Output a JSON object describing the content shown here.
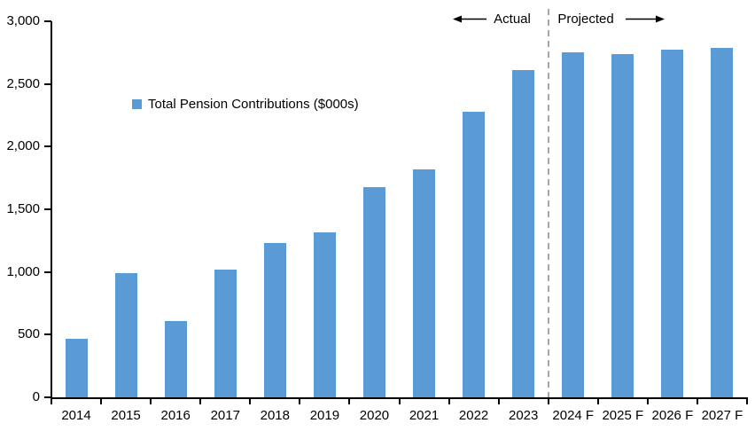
{
  "chart_data": {
    "type": "bar",
    "title": "",
    "legend_label": "Total Pension Contributions ($000s)",
    "categories": [
      "2014",
      "2015",
      "2016",
      "2017",
      "2018",
      "2019",
      "2020",
      "2021",
      "2022",
      "2023",
      "2024 F",
      "2025 F",
      "2026 F",
      "2027 F"
    ],
    "values": [
      465,
      990,
      605,
      1020,
      1230,
      1315,
      1680,
      1815,
      2280,
      2610,
      2750,
      2740,
      2775,
      2790
    ],
    "xlabel": "",
    "ylabel": "",
    "ylim": [
      0,
      3000
    ],
    "ytick_step": 500,
    "ytick_labels": [
      "0",
      "500",
      "1,000",
      "1,500",
      "2,000",
      "2,500",
      "3,000"
    ],
    "grid": "off",
    "legend_position": "inside-upper-left",
    "bar_color": "#5B9BD5",
    "axis_color": "#000000",
    "divider_color": "#A6A6A6",
    "annotations": {
      "actual_label": "Actual",
      "projected_label": "Projected",
      "divider_after_category": "2023"
    }
  }
}
